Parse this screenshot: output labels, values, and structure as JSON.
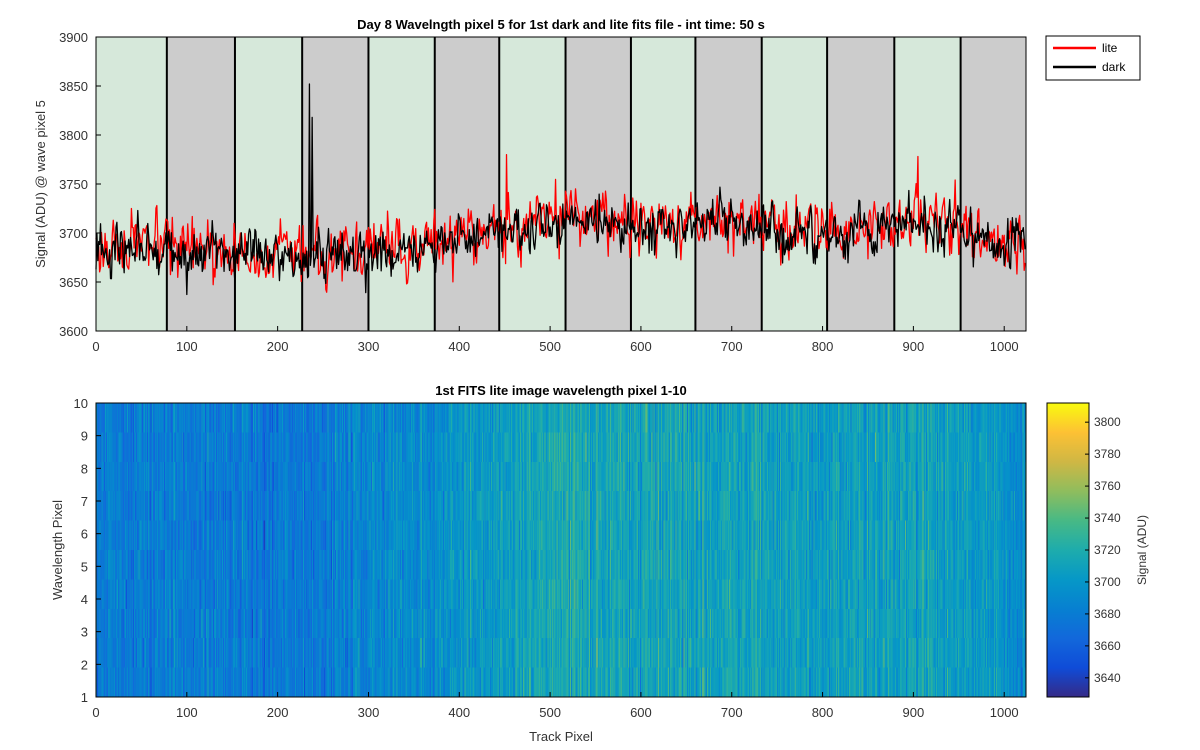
{
  "chart_data": [
    {
      "type": "line",
      "title": "Day 8 Wavelngth pixel 5 for 1st dark and lite fits file - int time: 50 s",
      "xlabel": "",
      "ylabel": "Signal (ADU) @ wave pixel 5",
      "xlim": [
        0,
        1024
      ],
      "ylim": [
        3600,
        3900
      ],
      "xticks": [
        0,
        100,
        200,
        300,
        400,
        500,
        600,
        700,
        800,
        900,
        1000
      ],
      "yticks": [
        3600,
        3650,
        3700,
        3750,
        3800,
        3850,
        3900
      ],
      "xtick_labels": [
        "0",
        "100",
        "200",
        "300",
        "400",
        "500",
        "600",
        "700",
        "800",
        "900",
        "1000"
      ],
      "ytick_labels": [
        "3600",
        "3650",
        "3700",
        "3750",
        "3800",
        "3850",
        "3900"
      ],
      "legend": {
        "placement": "outside-top-right",
        "entries": [
          "lite",
          "dark"
        ]
      },
      "background_bands": {
        "edges": [
          0,
          78,
          153,
          227,
          300,
          373,
          444,
          517,
          589,
          660,
          733,
          805,
          879,
          952,
          1024
        ],
        "colors": [
          "#d6e8da",
          "#cccccc"
        ]
      },
      "series": [
        {
          "name": "lite",
          "color": "#ff0000",
          "x": [
            0,
            40,
            80,
            120,
            160,
            200,
            240,
            280,
            320,
            360,
            400,
            440,
            480,
            520,
            560,
            600,
            640,
            680,
            720,
            760,
            800,
            840,
            880,
            920,
            960,
            1000,
            1024
          ],
          "values": [
            3685,
            3688,
            3682,
            3680,
            3678,
            3676,
            3680,
            3682,
            3684,
            3686,
            3695,
            3705,
            3715,
            3718,
            3716,
            3710,
            3712,
            3714,
            3712,
            3708,
            3704,
            3706,
            3712,
            3715,
            3705,
            3693,
            3690
          ]
        },
        {
          "name": "dark",
          "color": "#000000",
          "x": [
            0,
            40,
            80,
            120,
            160,
            200,
            240,
            280,
            320,
            360,
            400,
            440,
            480,
            520,
            560,
            600,
            640,
            680,
            720,
            760,
            800,
            840,
            880,
            920,
            960,
            1000,
            1024
          ],
          "values": [
            3682,
            3684,
            3678,
            3677,
            3675,
            3674,
            3676,
            3678,
            3680,
            3683,
            3691,
            3700,
            3708,
            3712,
            3710,
            3705,
            3707,
            3709,
            3706,
            3702,
            3699,
            3701,
            3706,
            3708,
            3700,
            3688,
            3686
          ]
        }
      ],
      "annotations": [
        {
          "series": "dark",
          "x": 235,
          "y": 3852
        },
        {
          "series": "dark",
          "x": 238,
          "y": 3818
        },
        {
          "series": "lite",
          "x": 452,
          "y": 3780
        },
        {
          "series": "lite",
          "x": 905,
          "y": 3778
        }
      ]
    },
    {
      "type": "heatmap",
      "title": "1st FITS lite image wavelength pixel 1-10",
      "xlabel": "Track Pixel",
      "ylabel": "Wavelength Pixel",
      "xlim": [
        0,
        1024
      ],
      "ylim": [
        1,
        10
      ],
      "xticks": [
        0,
        100,
        200,
        300,
        400,
        500,
        600,
        700,
        800,
        900,
        1000
      ],
      "yticks": [
        1,
        2,
        3,
        4,
        5,
        6,
        7,
        8,
        9,
        10
      ],
      "xtick_labels": [
        "0",
        "100",
        "200",
        "300",
        "400",
        "500",
        "600",
        "700",
        "800",
        "900",
        "1000"
      ],
      "ytick_labels": [
        "1",
        "2",
        "3",
        "4",
        "5",
        "6",
        "7",
        "8",
        "9",
        "10"
      ],
      "rows": 10,
      "columns": 1024,
      "mean_profile": {
        "x": [
          0,
          100,
          200,
          300,
          400,
          500,
          600,
          700,
          800,
          900,
          1000,
          1024
        ],
        "values": [
          3682,
          3680,
          3678,
          3684,
          3700,
          3715,
          3712,
          3712,
          3706,
          3712,
          3694,
          3690
        ]
      },
      "colorbar": {
        "label": "Signal (ADU)",
        "range": [
          3628,
          3812
        ],
        "ticks": [
          3640,
          3660,
          3680,
          3700,
          3720,
          3740,
          3760,
          3780,
          3800
        ],
        "tick_labels": [
          "3640",
          "3660",
          "3680",
          "3700",
          "3720",
          "3740",
          "3760",
          "3780",
          "3800"
        ],
        "colormap": "parula"
      }
    }
  ]
}
